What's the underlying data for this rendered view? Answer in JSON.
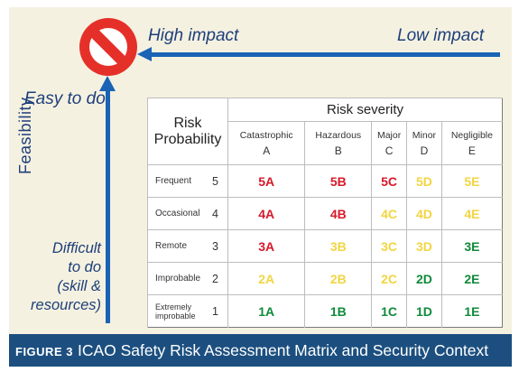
{
  "impact": {
    "high": "High impact",
    "low": "Low impact"
  },
  "feasibility": {
    "axis": "Feasibility",
    "easy": "Easy to do",
    "difficult": [
      "Difficult",
      "to do",
      "(skill &",
      "resources)"
    ]
  },
  "matrix": {
    "header_left": [
      "Risk",
      "Probability"
    ],
    "header_top": "Risk severity",
    "severity": [
      {
        "name": "Catastrophic",
        "letter": "A"
      },
      {
        "name": "Hazardous",
        "letter": "B"
      },
      {
        "name": "Major",
        "letter": "C"
      },
      {
        "name": "Minor",
        "letter": "D"
      },
      {
        "name": "Negligible",
        "letter": "E"
      }
    ],
    "rows": [
      {
        "name": "Frequent",
        "num": "5",
        "cells": [
          "5A",
          "5B",
          "5C",
          "5D",
          "5E"
        ]
      },
      {
        "name": "Occasional",
        "num": "4",
        "cells": [
          "4A",
          "4B",
          "4C",
          "4D",
          "4E"
        ]
      },
      {
        "name": "Remote",
        "num": "3",
        "cells": [
          "3A",
          "3B",
          "3C",
          "3D",
          "3E"
        ]
      },
      {
        "name": "Improbable",
        "num": "2",
        "cells": [
          "2A",
          "2B",
          "2C",
          "2D",
          "2E"
        ]
      },
      {
        "name": "Extremely improbable",
        "num": "1",
        "cells": [
          "1A",
          "1B",
          "1C",
          "1D",
          "1E"
        ]
      }
    ],
    "cell_levels": [
      [
        "red",
        "red",
        "red",
        "yellow",
        "yellow"
      ],
      [
        "red",
        "red",
        "yellow",
        "yellow",
        "yellow"
      ],
      [
        "red",
        "yellow",
        "yellow",
        "yellow",
        "green"
      ],
      [
        "yellow",
        "yellow",
        "yellow",
        "green",
        "green"
      ],
      [
        "green",
        "green",
        "green",
        "green",
        "green"
      ]
    ],
    "colors": {
      "red": "#d7192b",
      "yellow": "#f2d541",
      "green": "#0f8a3a"
    }
  },
  "caption": {
    "figure": "FIGURE 3",
    "text": "ICAO Safety Risk Assessment Matrix and Security Context"
  }
}
